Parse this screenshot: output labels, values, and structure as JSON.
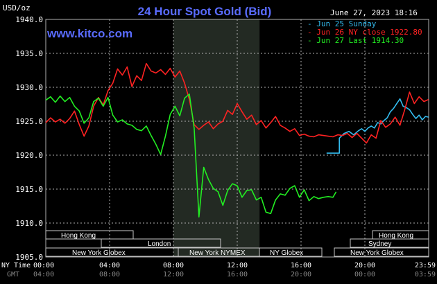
{
  "header": {
    "title": "24 Hour Spot Gold (Bid)",
    "units": "USD/oz",
    "timestamp": "June 27, 2023 18:16",
    "brand": "www.kitco.com"
  },
  "legend": [
    {
      "label": "Jun 25 Sunday",
      "color": "#33bbee"
    },
    {
      "label": "Jun 26 NY close 1922.80",
      "color": "#ff2222"
    },
    {
      "label": "Jun 27 Last 1914.30",
      "color": "#22ee22"
    }
  ],
  "axis": {
    "x_row1_label": "NY Time",
    "x_row2_label": "GMT"
  },
  "sessions": {
    "hong_kong": "Hong Kong",
    "london": "London",
    "ny_globex": "New York Globex",
    "ny_nymex": "New York NYMEX",
    "ny_globex_short": "NY Globex",
    "sydney": "Sydney"
  },
  "colors": {
    "background": "#000000",
    "grid": "#b0b0b0",
    "title": "#5a6cff",
    "highlight": "#232a23"
  },
  "chart_data": {
    "type": "line",
    "title": "24 Hour Spot Gold (Bid)",
    "ylabel": "USD/oz",
    "ylim": [
      1905,
      1940
    ],
    "xlim": [
      0,
      24
    ],
    "highlight_hours": [
      8,
      13.4
    ],
    "y_ticks": [
      "1905.0",
      "1910.0",
      "1915.0",
      "1920.0",
      "1925.0",
      "1930.0",
      "1935.0",
      "1940.0"
    ],
    "x_ticks_ny": [
      "00:00",
      "04:00",
      "08:00",
      "12:00",
      "16:00",
      "20:00",
      "23:59"
    ],
    "x_ticks_gmt": [
      "04:00",
      "08:00",
      "12:00",
      "16:00",
      "20:00",
      "00:00",
      "03:59"
    ],
    "series": [
      {
        "name": "Jun 25 Sunday",
        "color": "#33bbee",
        "x": [
          17.6,
          18.4,
          18.4,
          18.7,
          19.0,
          19.3,
          19.6,
          19.8,
          20.0,
          20.2,
          20.4,
          20.6,
          20.8,
          21.0,
          21.2,
          21.4,
          21.6,
          21.8,
          22.0,
          22.2,
          22.4,
          22.6,
          22.8,
          23.0,
          23.2,
          23.4,
          23.6,
          23.8,
          23.99
        ],
        "y": [
          1920.3,
          1920.3,
          1922.5,
          1923.2,
          1923.5,
          1923.0,
          1923.6,
          1923.9,
          1923.5,
          1924.0,
          1924.3,
          1924.0,
          1924.8,
          1924.6,
          1925.1,
          1925.5,
          1926.4,
          1926.9,
          1927.6,
          1928.3,
          1927.2,
          1927.0,
          1926.7,
          1926.0,
          1925.4,
          1925.9,
          1925.2,
          1925.7,
          1925.6
        ]
      },
      {
        "name": "Jun 26 NY close 1922.80",
        "color": "#ff2222",
        "x": [
          0.0,
          0.3,
          0.6,
          0.9,
          1.2,
          1.5,
          1.8,
          2.1,
          2.4,
          2.7,
          3.0,
          3.3,
          3.6,
          3.9,
          4.2,
          4.5,
          4.8,
          5.1,
          5.4,
          5.7,
          6.0,
          6.3,
          6.6,
          6.9,
          7.2,
          7.5,
          7.8,
          8.1,
          8.4,
          8.7,
          9.0,
          9.3,
          9.6,
          9.9,
          10.2,
          10.5,
          10.8,
          11.1,
          11.4,
          11.7,
          12.0,
          12.3,
          12.6,
          12.9,
          13.2,
          13.5,
          13.8,
          14.1,
          14.4,
          14.7,
          15.0,
          15.3,
          15.6,
          15.9,
          16.2,
          16.5,
          16.8,
          17.1,
          17.4,
          17.7,
          18.0,
          18.3,
          18.6,
          18.9,
          19.2,
          19.5,
          19.8,
          20.1,
          20.4,
          20.7,
          21.0,
          21.3,
          21.6,
          21.9,
          22.2,
          22.5,
          22.8,
          23.1,
          23.4,
          23.7,
          23.99
        ],
        "y": [
          1924.8,
          1925.5,
          1924.9,
          1925.3,
          1924.7,
          1925.4,
          1926.5,
          1924.5,
          1922.8,
          1924.3,
          1927.2,
          1928.5,
          1927.4,
          1929.5,
          1930.6,
          1932.7,
          1931.8,
          1933.0,
          1930.1,
          1931.7,
          1931.0,
          1933.5,
          1932.4,
          1932.1,
          1932.6,
          1931.9,
          1932.8,
          1931.5,
          1932.4,
          1930.6,
          1928.2,
          1924.5,
          1923.8,
          1924.4,
          1924.9,
          1923.9,
          1924.6,
          1925.0,
          1926.6,
          1926.0,
          1927.6,
          1926.4,
          1925.3,
          1925.9,
          1924.5,
          1925.1,
          1924.0,
          1924.8,
          1925.7,
          1924.4,
          1924.0,
          1923.5,
          1923.9,
          1922.9,
          1923.1,
          1922.8,
          1922.7,
          1923.0,
          1922.9,
          1922.8,
          1922.7,
          1923.0,
          1922.9,
          1923.2,
          1922.6,
          1923.2,
          1922.5,
          1921.8,
          1923.0,
          1922.5,
          1925.1,
          1924.1,
          1924.6,
          1925.6,
          1924.4,
          1926.7,
          1929.3,
          1927.6,
          1928.6,
          1927.9,
          1928.2
        ]
      },
      {
        "name": "Jun 27 Last 1914.30",
        "color": "#22ee22",
        "x": [
          0.0,
          0.3,
          0.6,
          0.9,
          1.2,
          1.5,
          1.8,
          2.1,
          2.4,
          2.7,
          3.0,
          3.3,
          3.6,
          3.9,
          4.2,
          4.5,
          4.8,
          5.1,
          5.4,
          5.7,
          6.0,
          6.3,
          6.6,
          6.9,
          7.2,
          7.5,
          7.8,
          8.1,
          8.4,
          8.7,
          9.0,
          9.3,
          9.6,
          9.9,
          10.2,
          10.5,
          10.8,
          11.1,
          11.4,
          11.7,
          12.0,
          12.3,
          12.6,
          12.9,
          13.2,
          13.5,
          13.8,
          14.1,
          14.4,
          14.7,
          15.0,
          15.3,
          15.6,
          15.9,
          16.2,
          16.5,
          16.8,
          17.1,
          17.4,
          17.7,
          18.0,
          18.2
        ],
        "y": [
          1928.1,
          1928.6,
          1927.8,
          1928.7,
          1927.9,
          1928.5,
          1927.2,
          1926.5,
          1924.7,
          1925.5,
          1927.9,
          1928.4,
          1927.2,
          1928.5,
          1925.9,
          1924.9,
          1925.2,
          1924.6,
          1924.4,
          1923.8,
          1923.6,
          1924.3,
          1922.9,
          1921.6,
          1920.1,
          1922.8,
          1926.0,
          1927.2,
          1925.8,
          1928.4,
          1929.0,
          1924.0,
          1910.9,
          1918.2,
          1916.4,
          1915.1,
          1914.6,
          1912.6,
          1914.8,
          1915.8,
          1915.5,
          1913.8,
          1914.8,
          1914.9,
          1913.4,
          1913.8,
          1911.6,
          1911.4,
          1913.4,
          1914.3,
          1914.1,
          1915.1,
          1915.5,
          1913.8,
          1914.9,
          1913.3,
          1913.9,
          1913.6,
          1913.8,
          1913.9,
          1913.8,
          1914.6
        ]
      }
    ]
  }
}
